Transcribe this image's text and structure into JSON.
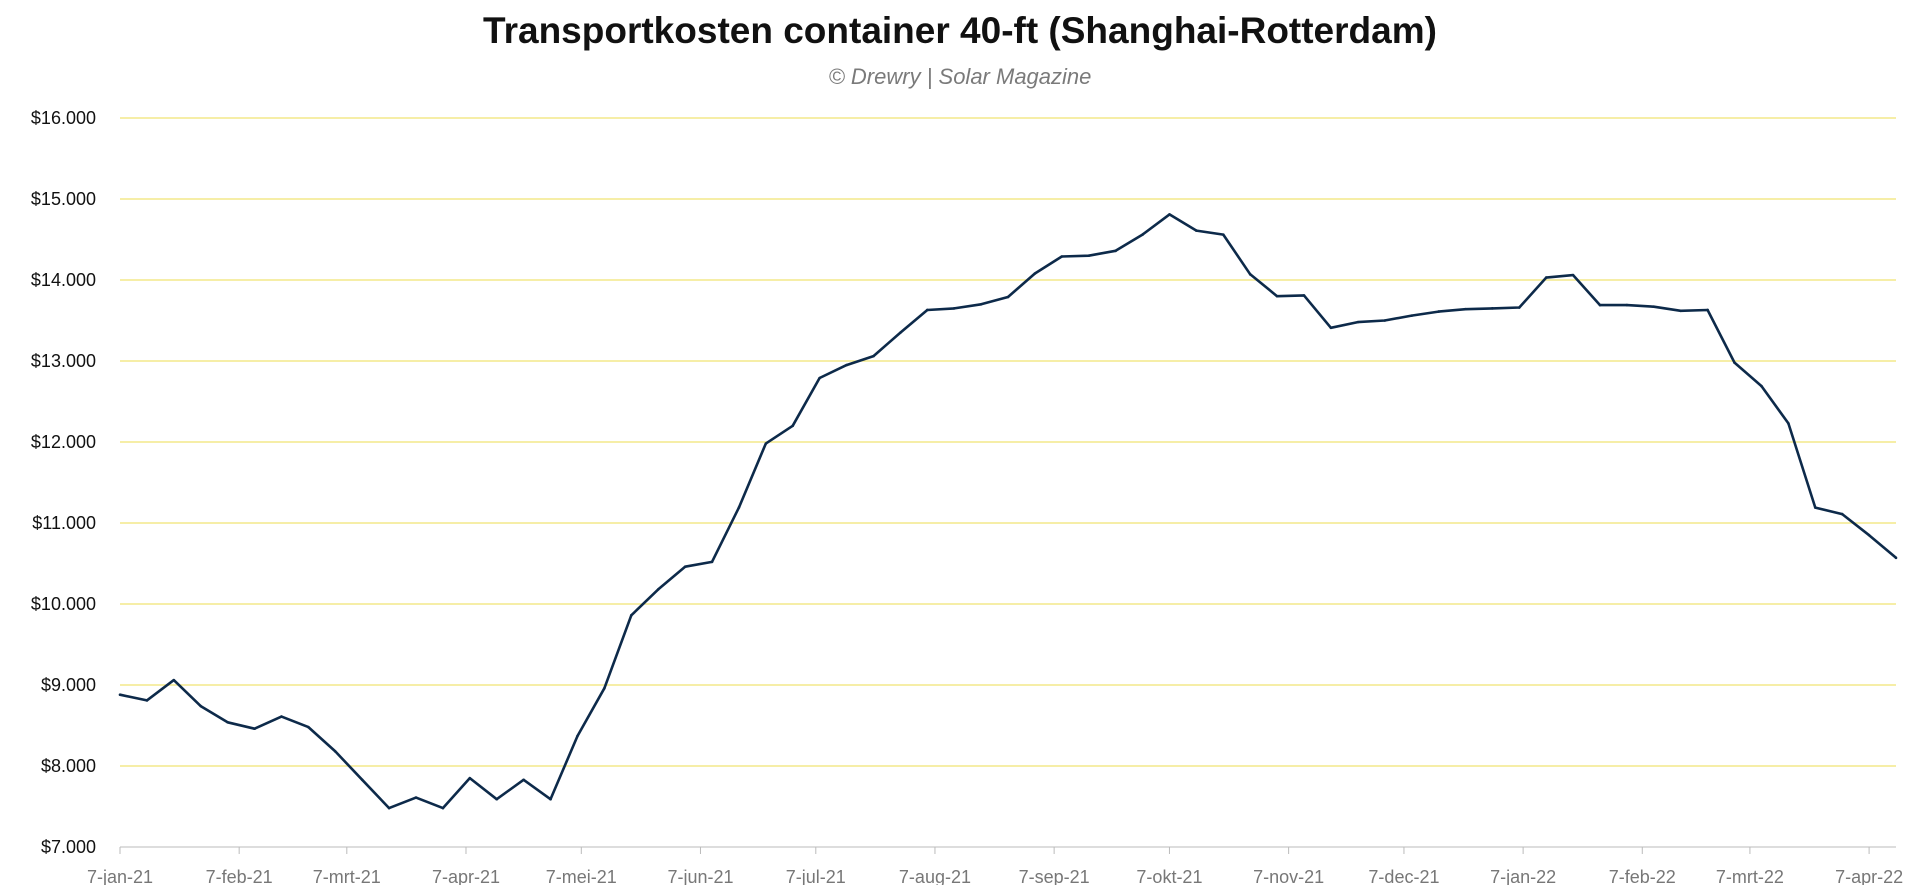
{
  "chart_data": {
    "type": "line",
    "title": "Transportkosten container 40-ft (Shanghai-Rotterdam)",
    "subtitle": "© Drewry | Solar Magazine",
    "xlabel": "",
    "ylabel": "",
    "ylim": [
      7000,
      16000
    ],
    "y_ticks": [
      "$7.000",
      "$8.000",
      "$9.000",
      "$10.000",
      "$11.000",
      "$12.000",
      "$13.000",
      "$14.000",
      "$15.000",
      "$16.000"
    ],
    "y_tick_values": [
      7000,
      8000,
      9000,
      10000,
      11000,
      12000,
      13000,
      14000,
      15000,
      16000
    ],
    "x_ticks": [
      "7-jan-21",
      "7-feb-21",
      "7-mrt-21",
      "7-apr-21",
      "7-mei-21",
      "7-jun-21",
      "7-jul-21",
      "7-aug-21",
      "7-sep-21",
      "7-okt-21",
      "7-nov-21",
      "7-dec-21",
      "7-jan-22",
      "7-feb-22",
      "7-mrt-22",
      "7-apr-22"
    ],
    "x_tick_dates": [
      "2021-01-07",
      "2021-02-07",
      "2021-03-07",
      "2021-04-07",
      "2021-05-07",
      "2021-06-07",
      "2021-07-07",
      "2021-08-07",
      "2021-09-07",
      "2021-10-07",
      "2021-11-07",
      "2021-12-07",
      "2022-01-07",
      "2022-02-07",
      "2022-03-07",
      "2022-04-07"
    ],
    "grid": true,
    "grid_color": "#f3e98a",
    "line_color": "#0d2a4a",
    "series": [
      {
        "name": "",
        "x": [
          "2021-01-07",
          "2021-01-14",
          "2021-01-21",
          "2021-01-28",
          "2021-02-04",
          "2021-02-11",
          "2021-02-18",
          "2021-02-25",
          "2021-03-04",
          "2021-03-11",
          "2021-03-18",
          "2021-03-25",
          "2021-04-01",
          "2021-04-08",
          "2021-04-15",
          "2021-04-22",
          "2021-04-29",
          "2021-05-06",
          "2021-05-13",
          "2021-05-20",
          "2021-05-27",
          "2021-06-03",
          "2021-06-10",
          "2021-06-17",
          "2021-06-24",
          "2021-07-01",
          "2021-07-08",
          "2021-07-15",
          "2021-07-22",
          "2021-07-29",
          "2021-08-05",
          "2021-08-12",
          "2021-08-19",
          "2021-08-26",
          "2021-09-02",
          "2021-09-09",
          "2021-09-16",
          "2021-09-23",
          "2021-09-30",
          "2021-10-07",
          "2021-10-14",
          "2021-10-21",
          "2021-10-28",
          "2021-11-04",
          "2021-11-11",
          "2021-11-18",
          "2021-11-25",
          "2021-12-02",
          "2021-12-09",
          "2021-12-16",
          "2021-12-23",
          "2021-12-30",
          "2022-01-06",
          "2022-01-13",
          "2022-01-20",
          "2022-01-27",
          "2022-02-03",
          "2022-02-10",
          "2022-02-17",
          "2022-02-24",
          "2022-03-03",
          "2022-03-10",
          "2022-03-17",
          "2022-03-24",
          "2022-03-31",
          "2022-04-07",
          "2022-04-14"
        ],
        "values": [
          8880,
          8810,
          9060,
          8740,
          8540,
          8460,
          8610,
          8480,
          8180,
          7830,
          7480,
          7610,
          7480,
          7850,
          7590,
          7830,
          7590,
          8370,
          8960,
          9860,
          10180,
          10460,
          10520,
          11190,
          11980,
          12200,
          12790,
          12950,
          13060,
          13350,
          13630,
          13650,
          13700,
          13790,
          14080,
          14290,
          14300,
          14360,
          14560,
          14810,
          14610,
          14560,
          14070,
          13800,
          13810,
          13410,
          13480,
          13500,
          13560,
          13610,
          13640,
          13650,
          13660,
          14030,
          14060,
          13690,
          13690,
          13670,
          13620,
          13630,
          12980,
          12690,
          12230,
          11190,
          11110,
          10850,
          10570
        ]
      }
    ]
  }
}
